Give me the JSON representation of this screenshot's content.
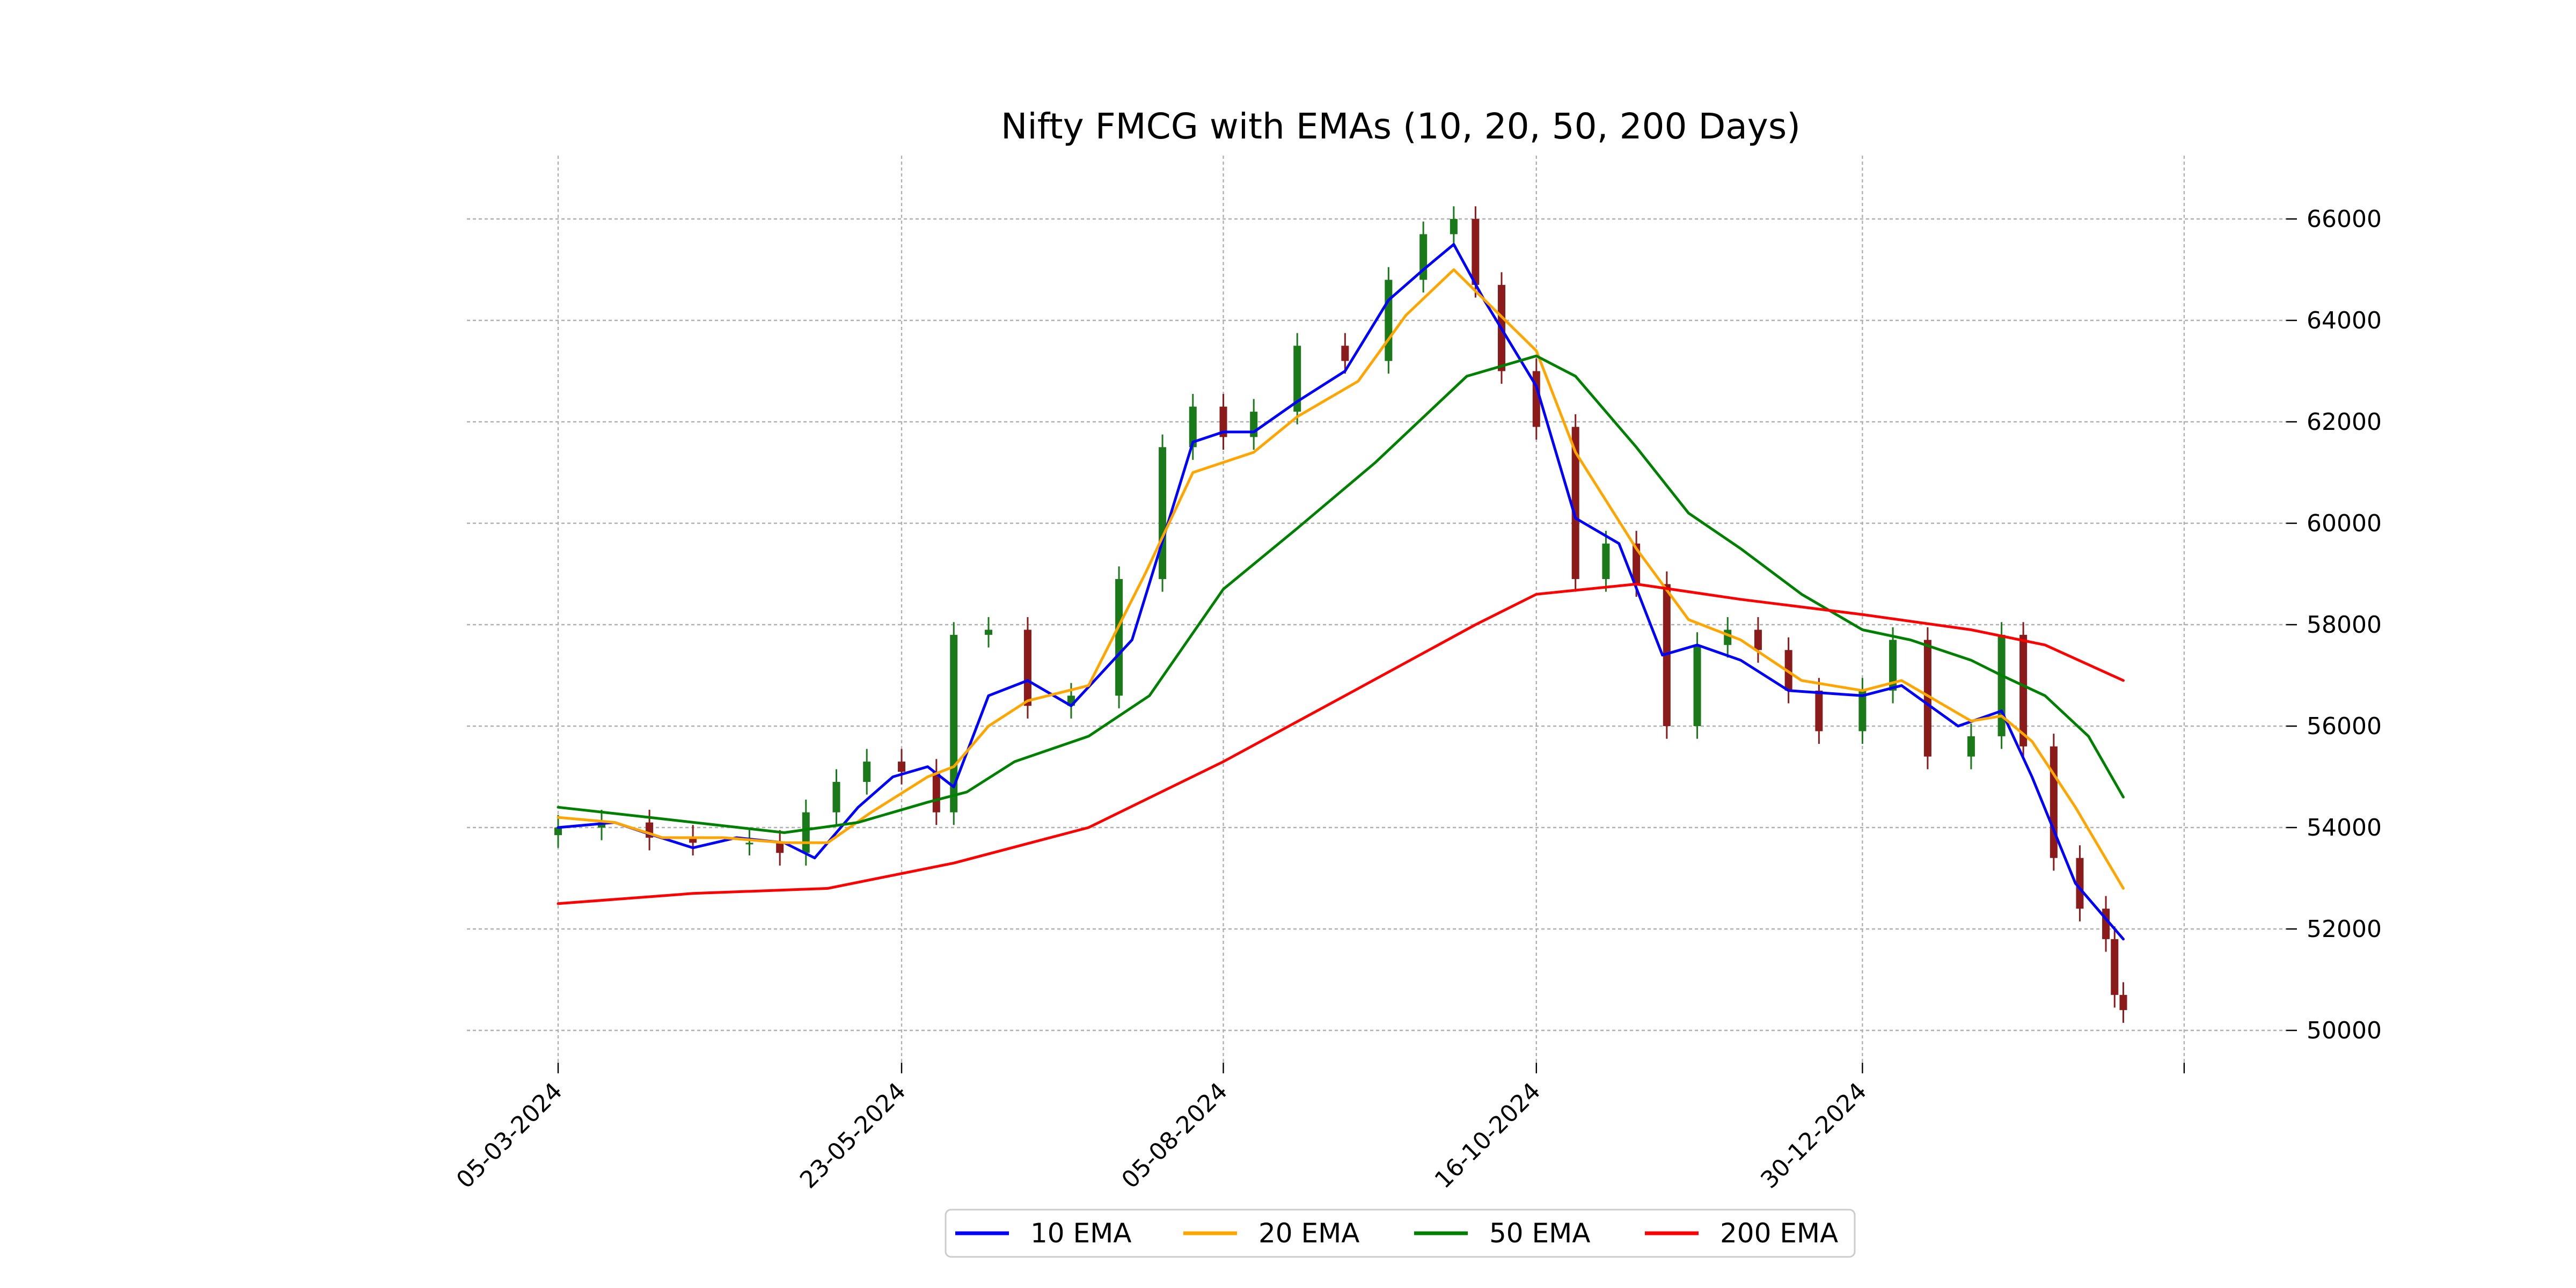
{
  "chart_data": {
    "type": "candlestick",
    "title": "Nifty FMCG with EMAs (10, 20, 50, 200 Days)",
    "xlabel": "",
    "ylabel": "",
    "x_range": [
      "2024-03-05",
      "2025-02-28"
    ],
    "ylim": [
      49700,
      66600
    ],
    "y_axis_side": "right",
    "y_ticks": [
      50000,
      52000,
      54000,
      56000,
      58000,
      60000,
      62000,
      64000,
      66000
    ],
    "y_tick_labels": [
      "50000",
      "52000",
      "54000",
      "56000",
      "58000",
      "60000",
      "62000",
      "64000",
      "66000"
    ],
    "x_ticks": [
      "2024-03-05",
      "2024-05-23",
      "2024-08-05",
      "2024-10-16",
      "2024-12-30",
      "2025-03-14"
    ],
    "x_tick_labels": [
      "05-03-2024",
      "23-05-2024",
      "05-08-2024",
      "16-10-2024",
      "30-12-2024",
      ""
    ],
    "grid": true,
    "legend_position": "bottom-center",
    "legend_entries": [
      "10 EMA",
      "20 EMA",
      "50 EMA",
      "200 EMA"
    ],
    "candle_colors": {
      "up": "#1a7a1a",
      "down": "#8b1a1a"
    },
    "candles_close": [
      [
        "2024-03-05",
        54000
      ],
      [
        "2024-03-15",
        54100
      ],
      [
        "2024-03-26",
        53800
      ],
      [
        "2024-04-05",
        53700
      ],
      [
        "2024-04-18",
        53700
      ],
      [
        "2024-04-25",
        53500
      ],
      [
        "2024-05-01",
        54300
      ],
      [
        "2024-05-08",
        54900
      ],
      [
        "2024-05-15",
        55300
      ],
      [
        "2024-05-23",
        55100
      ],
      [
        "2024-05-31",
        54300
      ],
      [
        "2024-06-04",
        57800
      ],
      [
        "2024-06-12",
        57900
      ],
      [
        "2024-06-21",
        56400
      ],
      [
        "2024-07-01",
        56600
      ],
      [
        "2024-07-12",
        58900
      ],
      [
        "2024-07-22",
        61500
      ],
      [
        "2024-07-29",
        62300
      ],
      [
        "2024-08-05",
        61700
      ],
      [
        "2024-08-12",
        62200
      ],
      [
        "2024-08-22",
        63500
      ],
      [
        "2024-09-02",
        63200
      ],
      [
        "2024-09-12",
        64800
      ],
      [
        "2024-09-20",
        65700
      ],
      [
        "2024-09-27",
        66000
      ],
      [
        "2024-10-02",
        64700
      ],
      [
        "2024-10-08",
        63000
      ],
      [
        "2024-10-16",
        61900
      ],
      [
        "2024-10-25",
        58900
      ],
      [
        "2024-11-01",
        59600
      ],
      [
        "2024-11-08",
        58800
      ],
      [
        "2024-11-15",
        56000
      ],
      [
        "2024-11-22",
        57600
      ],
      [
        "2024-11-29",
        57900
      ],
      [
        "2024-12-06",
        57500
      ],
      [
        "2024-12-13",
        56700
      ],
      [
        "2024-12-20",
        55900
      ],
      [
        "2024-12-30",
        56700
      ],
      [
        "2025-01-06",
        57700
      ],
      [
        "2025-01-14",
        55400
      ],
      [
        "2025-01-24",
        55800
      ],
      [
        "2025-01-31",
        57800
      ],
      [
        "2025-02-05",
        55600
      ],
      [
        "2025-02-12",
        53400
      ],
      [
        "2025-02-18",
        52400
      ],
      [
        "2025-02-24",
        51800
      ],
      [
        "2025-02-26",
        50700
      ],
      [
        "2025-02-28",
        50400
      ]
    ],
    "series": [
      {
        "name": "10 EMA",
        "color": "#0000ff",
        "points": [
          [
            "2024-03-05",
            54000
          ],
          [
            "2024-03-18",
            54100
          ],
          [
            "2024-03-25",
            53900
          ],
          [
            "2024-04-05",
            53600
          ],
          [
            "2024-04-15",
            53800
          ],
          [
            "2024-04-26",
            53700
          ],
          [
            "2024-05-03",
            53400
          ],
          [
            "2024-05-13",
            54400
          ],
          [
            "2024-05-21",
            55000
          ],
          [
            "2024-05-29",
            55200
          ],
          [
            "2024-06-04",
            54800
          ],
          [
            "2024-06-12",
            56600
          ],
          [
            "2024-06-21",
            56900
          ],
          [
            "2024-07-01",
            56400
          ],
          [
            "2024-07-15",
            57700
          ],
          [
            "2024-07-29",
            61600
          ],
          [
            "2024-08-05",
            61800
          ],
          [
            "2024-08-12",
            61800
          ],
          [
            "2024-08-22",
            62400
          ],
          [
            "2024-09-02",
            63000
          ],
          [
            "2024-09-12",
            64400
          ],
          [
            "2024-09-20",
            65000
          ],
          [
            "2024-09-27",
            65500
          ],
          [
            "2024-10-04",
            64400
          ],
          [
            "2024-10-16",
            62700
          ],
          [
            "2024-10-25",
            60100
          ],
          [
            "2024-11-04",
            59600
          ],
          [
            "2024-11-14",
            57400
          ],
          [
            "2024-11-22",
            57600
          ],
          [
            "2024-12-02",
            57300
          ],
          [
            "2024-12-13",
            56700
          ],
          [
            "2024-12-30",
            56600
          ],
          [
            "2025-01-08",
            56800
          ],
          [
            "2025-01-21",
            56000
          ],
          [
            "2025-01-31",
            56300
          ],
          [
            "2025-02-07",
            55000
          ],
          [
            "2025-02-17",
            52900
          ],
          [
            "2025-02-28",
            51800
          ]
        ]
      },
      {
        "name": "20 EMA",
        "color": "#ffa500",
        "points": [
          [
            "2024-03-05",
            54200
          ],
          [
            "2024-03-18",
            54100
          ],
          [
            "2024-03-29",
            53800
          ],
          [
            "2024-04-12",
            53800
          ],
          [
            "2024-04-26",
            53700
          ],
          [
            "2024-05-06",
            53700
          ],
          [
            "2024-05-16",
            54300
          ],
          [
            "2024-05-29",
            55000
          ],
          [
            "2024-06-04",
            55200
          ],
          [
            "2024-06-12",
            56000
          ],
          [
            "2024-06-21",
            56500
          ],
          [
            "2024-07-05",
            56800
          ],
          [
            "2024-07-18",
            59000
          ],
          [
            "2024-07-29",
            61000
          ],
          [
            "2024-08-12",
            61400
          ],
          [
            "2024-08-22",
            62100
          ],
          [
            "2024-09-05",
            62800
          ],
          [
            "2024-09-16",
            64100
          ],
          [
            "2024-09-27",
            65000
          ],
          [
            "2024-10-16",
            63400
          ],
          [
            "2024-10-25",
            61400
          ],
          [
            "2024-11-08",
            59500
          ],
          [
            "2024-11-20",
            58100
          ],
          [
            "2024-12-02",
            57700
          ],
          [
            "2024-12-16",
            56900
          ],
          [
            "2024-12-30",
            56700
          ],
          [
            "2025-01-08",
            56900
          ],
          [
            "2025-01-24",
            56100
          ],
          [
            "2025-01-31",
            56200
          ],
          [
            "2025-02-07",
            55700
          ],
          [
            "2025-02-17",
            54400
          ],
          [
            "2025-02-28",
            52800
          ]
        ]
      },
      {
        "name": "50 EMA",
        "color": "#008000",
        "points": [
          [
            "2024-03-05",
            54400
          ],
          [
            "2024-03-26",
            54200
          ],
          [
            "2024-04-26",
            53900
          ],
          [
            "2024-05-13",
            54100
          ],
          [
            "2024-05-29",
            54500
          ],
          [
            "2024-06-07",
            54700
          ],
          [
            "2024-06-18",
            55300
          ],
          [
            "2024-07-05",
            55800
          ],
          [
            "2024-07-19",
            56600
          ],
          [
            "2024-08-05",
            58700
          ],
          [
            "2024-08-22",
            59900
          ],
          [
            "2024-09-09",
            61200
          ],
          [
            "2024-09-30",
            62900
          ],
          [
            "2024-10-16",
            63300
          ],
          [
            "2024-10-25",
            62900
          ],
          [
            "2024-11-08",
            61500
          ],
          [
            "2024-11-20",
            60200
          ],
          [
            "2024-12-02",
            59500
          ],
          [
            "2024-12-16",
            58600
          ],
          [
            "2024-12-30",
            57900
          ],
          [
            "2025-01-10",
            57700
          ],
          [
            "2025-01-24",
            57300
          ],
          [
            "2025-01-31",
            57000
          ],
          [
            "2025-02-10",
            56600
          ],
          [
            "2025-02-20",
            55800
          ],
          [
            "2025-02-28",
            54600
          ]
        ]
      },
      {
        "name": "200 EMA",
        "color": "#ff0000",
        "points": [
          [
            "2024-03-05",
            52500
          ],
          [
            "2024-04-05",
            52700
          ],
          [
            "2024-05-06",
            52800
          ],
          [
            "2024-06-04",
            53300
          ],
          [
            "2024-07-05",
            54000
          ],
          [
            "2024-08-05",
            55300
          ],
          [
            "2024-09-02",
            56600
          ],
          [
            "2024-10-02",
            58000
          ],
          [
            "2024-10-16",
            58600
          ],
          [
            "2024-11-08",
            58800
          ],
          [
            "2024-12-02",
            58500
          ],
          [
            "2024-12-30",
            58200
          ],
          [
            "2025-01-24",
            57900
          ],
          [
            "2025-02-10",
            57600
          ],
          [
            "2025-02-28",
            56900
          ]
        ]
      }
    ]
  }
}
